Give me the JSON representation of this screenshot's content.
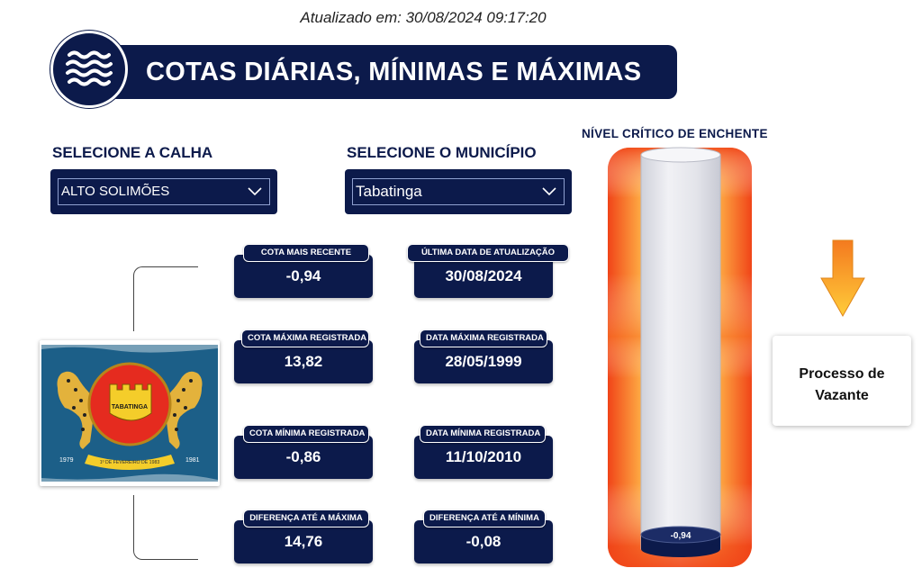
{
  "header": {
    "updated_text": "Atualizado em: 30/08/2024 09:17:20",
    "title": "COTAS DIÁRIAS, MÍNIMAS E MÁXIMAS",
    "icon": "water-waves-icon"
  },
  "filters": {
    "calha": {
      "label": "SELECIONE A CALHA",
      "value": "ALTO SOLIMÕES"
    },
    "municipio": {
      "label": "SELECIONE O MUNICÍPIO",
      "value": "Tabatinga"
    }
  },
  "flag": {
    "emblem_text": "TABATINGA",
    "year_left": "1979",
    "year_right": "1981",
    "ribbon_text": "1º DE FEVEREIRO DE 1983"
  },
  "cards": {
    "cota_recente": {
      "label": "COTA MAIS RECENTE",
      "value": "-0,94"
    },
    "ultima_data": {
      "label": "ÚLTIMA DATA DE ATUALIZAÇÃO",
      "value": "30/08/2024"
    },
    "cota_maxima": {
      "label": "COTA MÁXIMA REGISTRADA",
      "value": "13,82"
    },
    "data_maxima": {
      "label": "DATA MÁXIMA REGISTRADA",
      "value": "28/05/1999"
    },
    "cota_minima": {
      "label": "COTA MÍNIMA REGISTRADA",
      "value": "-0,86"
    },
    "data_minima": {
      "label": "DATA MÍNIMA REGISTRADA",
      "value": "11/10/2010"
    },
    "dif_maxima": {
      "label": "DIFERENÇA ATÉ A MÁXIMA",
      "value": "14,76"
    },
    "dif_minima": {
      "label": "DIFERENÇA ATÉ A MÍNIMA",
      "value": "-0,08"
    }
  },
  "gauge": {
    "title": "NÍVEL CRÍTICO DE ENCHENTE",
    "level_label": "-0,94",
    "trend_icon": "arrow-down-icon",
    "status": "Processo de Vazante",
    "colors": {
      "outer_red": "#f04418",
      "inner_yellow": "#fff4b0",
      "tube": "#e6e6ec",
      "liquid": "#0c1a4b",
      "arrow": "#f5a623"
    }
  }
}
